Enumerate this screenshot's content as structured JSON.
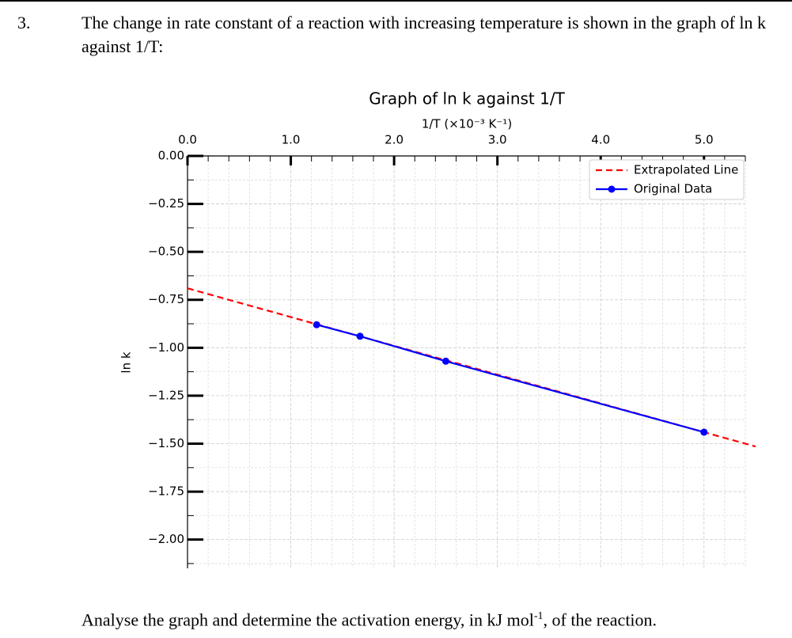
{
  "question": {
    "number": "3.",
    "text": "The change in rate constant of a reaction with increasing temperature is shown in the graph of ln k against 1/T:"
  },
  "chart_data": {
    "type": "line",
    "title": "Graph of ln k against 1/T",
    "xlabel": "1/T (×10⁻³ K⁻¹)",
    "ylabel": "ln k",
    "xaxis": "top",
    "grid": true,
    "legend": "upper right",
    "xlim": [
      0,
      5.4
    ],
    "ylim": [
      -2.15,
      0
    ],
    "xticks": [
      {
        "value": 0,
        "label": "0.0"
      },
      {
        "value": 1,
        "label": "1.0"
      },
      {
        "value": 2,
        "label": "2.0"
      },
      {
        "value": 3,
        "label": "3.0"
      },
      {
        "value": 4,
        "label": "4.0"
      },
      {
        "value": 5,
        "label": "5.0"
      }
    ],
    "yticks": [
      {
        "value": 0,
        "label": "0.00"
      },
      {
        "value": -0.25,
        "label": "−0.25"
      },
      {
        "value": -0.5,
        "label": "−0.50"
      },
      {
        "value": -0.75,
        "label": "−0.75"
      },
      {
        "value": -1,
        "label": "−1.00"
      },
      {
        "value": -1.25,
        "label": "−1.25"
      },
      {
        "value": -1.5,
        "label": "−1.50"
      },
      {
        "value": -1.75,
        "label": "−1.75"
      },
      {
        "value": -2,
        "label": "−2.00"
      }
    ],
    "xminorticks": [
      0.2,
      0.4,
      0.6,
      0.8,
      1.2,
      1.4,
      1.6,
      1.8,
      2.2,
      2.4,
      2.6,
      2.8,
      3.2,
      3.4,
      3.6,
      3.8,
      4.2,
      4.4,
      4.6,
      4.8,
      5.2,
      5.4
    ],
    "yminorticks": [
      -0.125,
      -0.375,
      -0.625,
      -0.875,
      -1.125,
      -1.375,
      -1.625,
      -1.875,
      -2.125
    ],
    "series": [
      {
        "name": "Extrapolated Line",
        "color": "#ff0000",
        "style": "dashed",
        "x": [
          0,
          5.5
        ],
        "values": [
          -0.69,
          -1.515
        ]
      },
      {
        "name": "Original Data",
        "color": "#0000ff",
        "style": "solid",
        "marker": "circle",
        "x": [
          1.25,
          1.67,
          2.5,
          5.0
        ],
        "values": [
          -0.88,
          -0.94,
          -1.07,
          -1.44
        ]
      }
    ]
  },
  "footer": {
    "text_before": "Analyse the graph and determine the activation energy, in kJ mol",
    "superscript": "-1",
    "text_after": ", of the reaction."
  }
}
